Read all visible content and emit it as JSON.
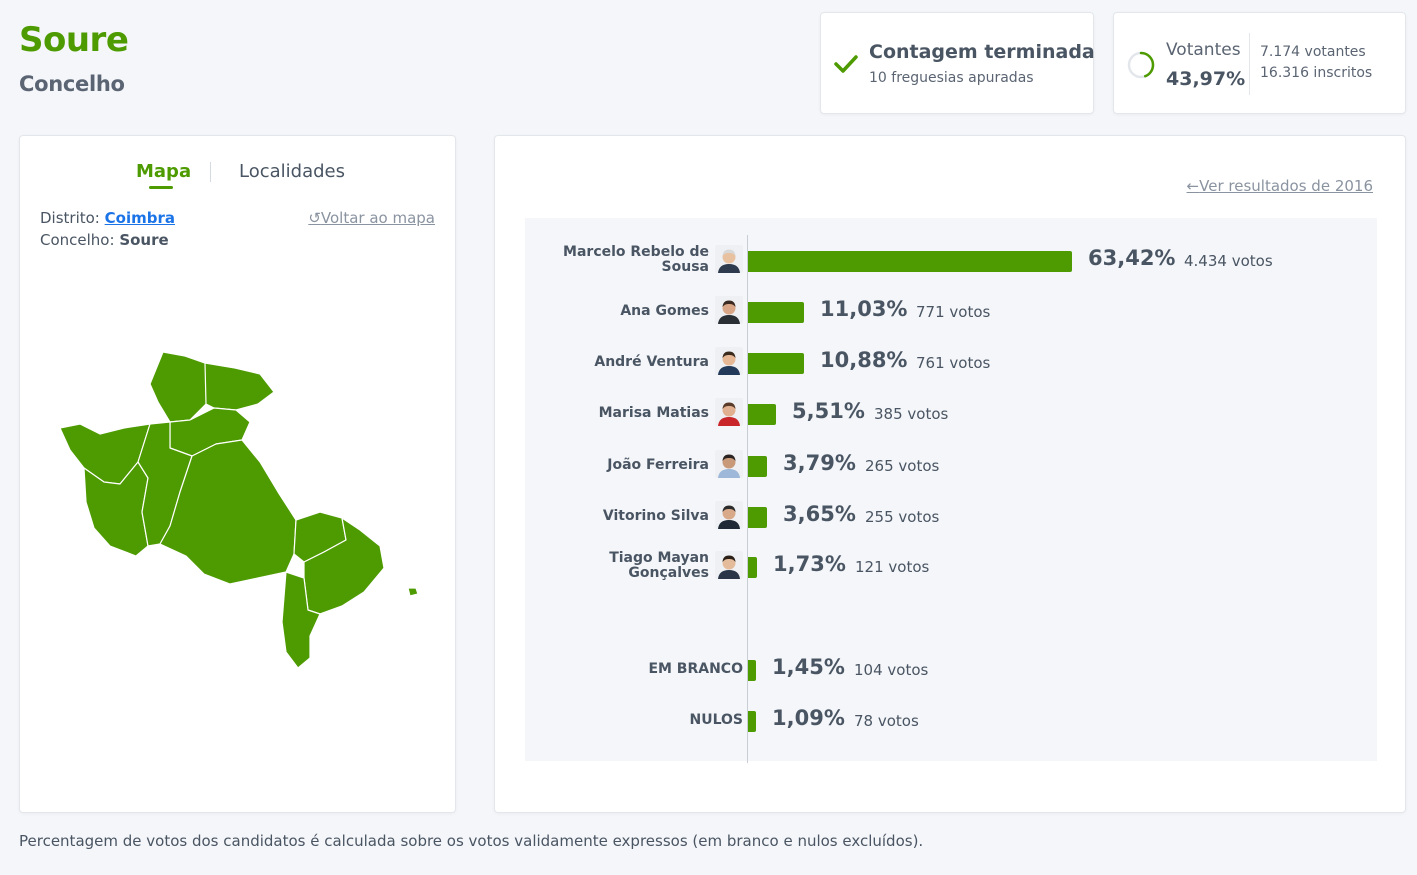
{
  "header": {
    "title": "Soure",
    "subtitle": "Concelho"
  },
  "status": {
    "title": "Contagem terminada",
    "sub": "10 freguesias apuradas"
  },
  "votantes": {
    "label": "Votantes",
    "pct": "43,97%",
    "votantes": "7.174 votantes",
    "inscritos": "16.316 inscritos",
    "fraction": 0.4397
  },
  "tabs": {
    "map": "Mapa",
    "localities": "Localidades"
  },
  "info": {
    "district_label": "Distrito:",
    "district_value": "Coimbra",
    "concelho_label": "Concelho:",
    "concelho_value": "Soure",
    "back_link": "Voltar ao mapa"
  },
  "results": {
    "prev_link": "Ver resultados de 2016",
    "candidates": [
      {
        "name_l1": "Marcelo Rebelo de",
        "name_l2": "Sousa",
        "pct": "63,42%",
        "votes": "4.434 votos",
        "value": 63.42
      },
      {
        "name_l1": "Ana Gomes",
        "name_l2": "",
        "pct": "11,03%",
        "votes": "771 votos",
        "value": 11.03
      },
      {
        "name_l1": "André Ventura",
        "name_l2": "",
        "pct": "10,88%",
        "votes": "761 votos",
        "value": 10.88
      },
      {
        "name_l1": "Marisa Matias",
        "name_l2": "",
        "pct": "5,51%",
        "votes": "385 votos",
        "value": 5.51
      },
      {
        "name_l1": "João Ferreira",
        "name_l2": "",
        "pct": "3,79%",
        "votes": "265 votos",
        "value": 3.79
      },
      {
        "name_l1": "Vitorino Silva",
        "name_l2": "",
        "pct": "3,65%",
        "votes": "255 votos",
        "value": 3.65
      },
      {
        "name_l1": "Tiago Mayan",
        "name_l2": "Gonçalves",
        "pct": "1,73%",
        "votes": "121 votos",
        "value": 1.73
      }
    ],
    "others": [
      {
        "name": "EM BRANCO",
        "pct": "1,45%",
        "votes": "104 votos",
        "value": 1.45
      },
      {
        "name": "NULOS",
        "pct": "1,09%",
        "votes": "78 votos",
        "value": 1.09
      }
    ]
  },
  "footer": "Percentagem de votos dos candidatos é calculada sobre os votos validamente expressos (em branco e nulos excluídos).",
  "colors": {
    "accent": "#4d9b00",
    "link": "#1b73e8",
    "text": "#4a5563"
  }
}
